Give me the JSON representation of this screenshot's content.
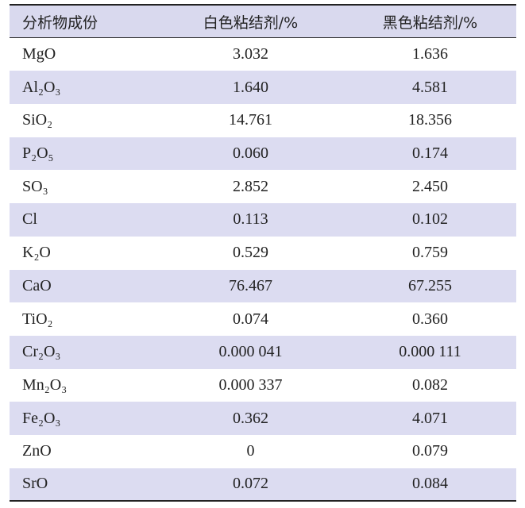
{
  "table": {
    "header": [
      "分析物成份",
      "白色粘结剂/%",
      "黑色粘结剂/%"
    ],
    "rows": [
      [
        "MgO",
        "3.032",
        "1.636"
      ],
      [
        "Al₂O₃",
        "1.640",
        "4.581"
      ],
      [
        "SiO₂",
        "14.761",
        "18.356"
      ],
      [
        "P₂O₅",
        "0.060",
        "0.174"
      ],
      [
        "SO₃",
        "2.852",
        "2.450"
      ],
      [
        "Cl",
        "0.113",
        "0.102"
      ],
      [
        "K₂O",
        "0.529",
        "0.759"
      ],
      [
        "CaO",
        "76.467",
        "67.255"
      ],
      [
        "TiO₂",
        "0.074",
        "0.360"
      ],
      [
        "Cr₂O₃",
        "0.000 041",
        "0.000 111"
      ],
      [
        "Mn₂O₃",
        "0.000 337",
        "0.082"
      ],
      [
        "Fe₂O₃",
        "0.362",
        "4.071"
      ],
      [
        "ZnO",
        "0",
        "0.079"
      ],
      [
        "SrO",
        "0.072",
        "0.084"
      ]
    ]
  }
}
